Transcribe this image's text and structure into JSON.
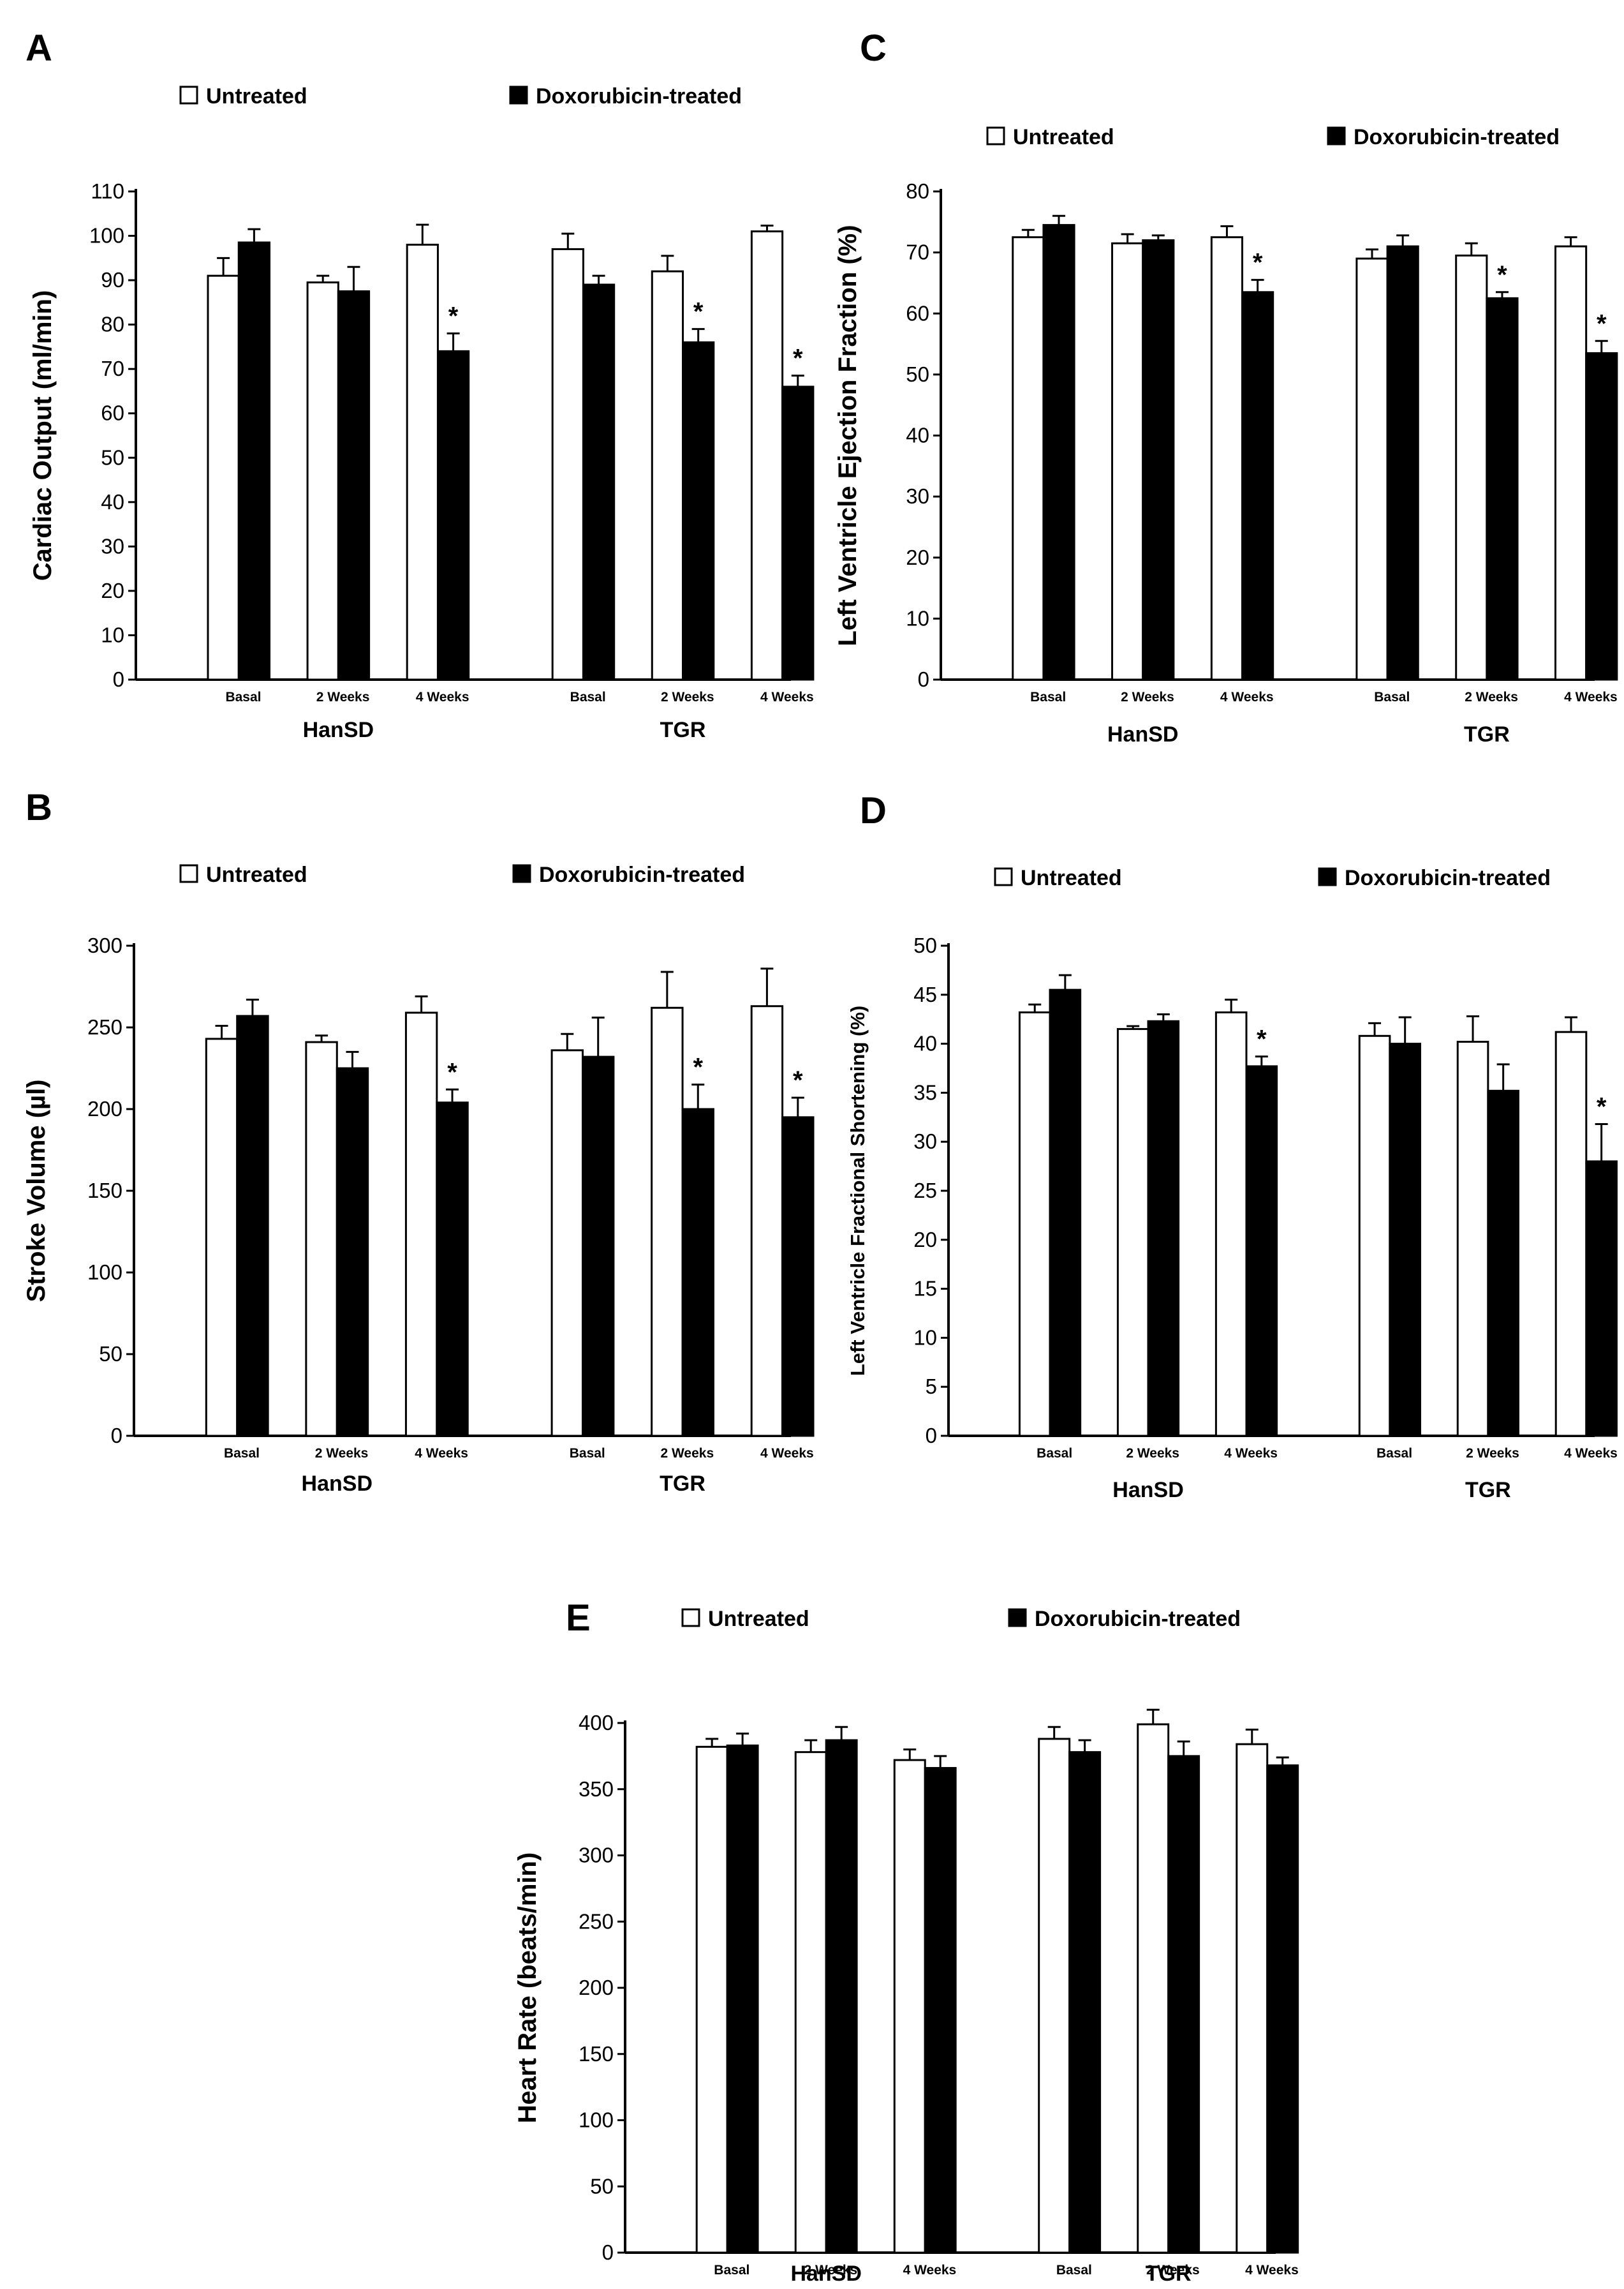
{
  "colors": {
    "untreated": "#ffffff",
    "treated": "#000000",
    "axis": "#000000"
  },
  "chart_data": [
    {
      "panel": "A",
      "type": "bar",
      "ylabel": "Cardiac Output (ml/min)",
      "ylim": [
        0,
        110
      ],
      "yticks": [
        0,
        10,
        20,
        30,
        40,
        50,
        60,
        70,
        80,
        90,
        100,
        110
      ],
      "legend": [
        "Untreated",
        "Doxorubicin-treated"
      ],
      "groups": [
        {
          "label": "HanSD",
          "categories": [
            "Basal",
            "2 Weeks",
            "4 Weeks"
          ]
        },
        {
          "label": "TGR",
          "categories": [
            "Basal",
            "2 Weeks",
            "4 Weeks"
          ]
        }
      ],
      "series": [
        {
          "name": "Untreated",
          "values": [
            91,
            89.5,
            98,
            97,
            92,
            101
          ],
          "errors": [
            4,
            1.5,
            4.5,
            3.5,
            3.5,
            1.3
          ]
        },
        {
          "name": "Doxorubicin-treated",
          "values": [
            98.5,
            87.5,
            74,
            89,
            76,
            66
          ],
          "errors": [
            3,
            5.5,
            4,
            2,
            3,
            2.5
          ]
        }
      ],
      "significance": [
        false,
        false,
        true,
        false,
        true,
        true
      ],
      "significance_mark": "*"
    },
    {
      "panel": "B",
      "type": "bar",
      "ylabel": "Stroke Volume (µl)",
      "ylim": [
        0,
        300
      ],
      "yticks": [
        0,
        50,
        100,
        150,
        200,
        250,
        300
      ],
      "legend": [
        "Untreated",
        "Doxorubicin-treated"
      ],
      "groups": [
        {
          "label": "HanSD",
          "categories": [
            "Basal",
            "2 Weeks",
            "4 Weeks"
          ]
        },
        {
          "label": "TGR",
          "categories": [
            "Basal",
            "2 Weeks",
            "4 Weeks"
          ]
        }
      ],
      "series": [
        {
          "name": "Untreated",
          "values": [
            243,
            241,
            259,
            236,
            262,
            263
          ],
          "errors": [
            8,
            4,
            10,
            10,
            22,
            23
          ]
        },
        {
          "name": "Doxorubicin-treated",
          "values": [
            257,
            225,
            204,
            232,
            200,
            195
          ],
          "errors": [
            10,
            10,
            8,
            24,
            15,
            12
          ]
        }
      ],
      "significance": [
        false,
        false,
        true,
        false,
        true,
        true
      ],
      "significance_mark": "*"
    },
    {
      "panel": "C",
      "type": "bar",
      "ylabel": "Left Ventricle Ejection Fraction (%)",
      "ylim": [
        0,
        80
      ],
      "yticks": [
        0,
        10,
        20,
        30,
        40,
        50,
        60,
        70,
        80
      ],
      "legend": [
        "Untreated",
        "Doxorubicin-treated"
      ],
      "groups": [
        {
          "label": "HanSD",
          "categories": [
            "Basal",
            "2 Weeks",
            "4 Weeks"
          ]
        },
        {
          "label": "TGR",
          "categories": [
            "Basal",
            "2 Weeks",
            "4 Weeks"
          ]
        }
      ],
      "series": [
        {
          "name": "Untreated",
          "values": [
            72.5,
            71.5,
            72.5,
            69,
            69.5,
            71
          ],
          "errors": [
            1.2,
            1.5,
            1.8,
            1.5,
            2,
            1.5
          ]
        },
        {
          "name": "Doxorubicin-treated",
          "values": [
            74.5,
            72,
            63.5,
            71,
            62.5,
            53.5
          ],
          "errors": [
            1.5,
            0.8,
            2,
            1.8,
            1,
            2
          ]
        }
      ],
      "significance": [
        false,
        false,
        true,
        false,
        true,
        true
      ],
      "significance_mark": "*"
    },
    {
      "panel": "D",
      "type": "bar",
      "ylabel": "Left Ventricle Fractional Shortening (%)",
      "ylim": [
        0,
        50
      ],
      "yticks": [
        0,
        5,
        10,
        15,
        20,
        25,
        30,
        35,
        40,
        45,
        50
      ],
      "legend": [
        "Untreated",
        "Doxorubicin-treated"
      ],
      "groups": [
        {
          "label": "HanSD",
          "categories": [
            "Basal",
            "2 Weeks",
            "4 Weeks"
          ]
        },
        {
          "label": "TGR",
          "categories": [
            "Basal",
            "2 Weeks",
            "4 Weeks"
          ]
        }
      ],
      "series": [
        {
          "name": "Untreated",
          "values": [
            43.2,
            41.5,
            43.2,
            40.8,
            40.2,
            41.2
          ],
          "errors": [
            0.8,
            0.3,
            1.3,
            1.3,
            2.6,
            1.5
          ]
        },
        {
          "name": "Doxorubicin-treated",
          "values": [
            45.5,
            42.3,
            37.7,
            40,
            35.2,
            28
          ],
          "errors": [
            1.5,
            0.7,
            1,
            2.7,
            2.7,
            3.8
          ]
        }
      ],
      "significance": [
        false,
        false,
        true,
        false,
        false,
        true
      ],
      "significance_mark": "*"
    },
    {
      "panel": "E",
      "type": "bar",
      "ylabel": "Heart Rate (beats/min)",
      "ylim": [
        0,
        400
      ],
      "yticks": [
        0,
        50,
        100,
        150,
        200,
        250,
        300,
        350,
        400
      ],
      "legend": [
        "Untreated",
        "Doxorubicin-treated"
      ],
      "groups": [
        {
          "label": "HanSD",
          "categories": [
            "Basal",
            "2 Weeks",
            "4 Weeks"
          ]
        },
        {
          "label": "TGR",
          "categories": [
            "Basal",
            "2 Weeks",
            "4 Weeks"
          ]
        }
      ],
      "series": [
        {
          "name": "Untreated",
          "values": [
            382,
            378,
            372,
            388,
            399,
            384
          ],
          "errors": [
            6,
            9,
            8,
            9,
            11,
            11
          ]
        },
        {
          "name": "Doxorubicin-treated",
          "values": [
            383,
            387,
            366,
            378,
            375,
            368
          ],
          "errors": [
            9,
            10,
            9,
            9,
            11,
            6
          ]
        }
      ],
      "significance": [
        false,
        false,
        false,
        false,
        false,
        false
      ],
      "significance_mark": "*"
    }
  ]
}
